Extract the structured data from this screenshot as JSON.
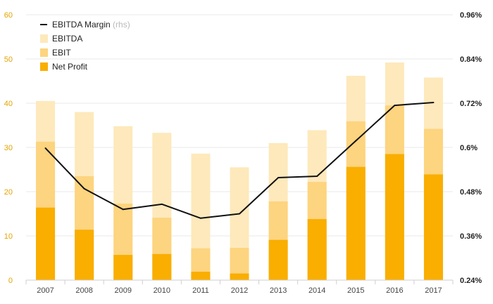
{
  "chart_data": {
    "type": "bar",
    "categories": [
      "2007",
      "2008",
      "2009",
      "2010",
      "2011",
      "2012",
      "2013",
      "2014",
      "2015",
      "2016",
      "2017"
    ],
    "series": [
      {
        "name": "EBITDA",
        "type": "bar",
        "values": [
          40.5,
          38.0,
          34.8,
          33.3,
          28.6,
          25.5,
          31.0,
          33.9,
          46.2,
          49.2,
          45.8
        ]
      },
      {
        "name": "EBIT",
        "type": "bar",
        "values": [
          31.3,
          23.5,
          17.3,
          14.1,
          7.2,
          7.3,
          17.8,
          22.2,
          35.9,
          39.5,
          34.2
        ]
      },
      {
        "name": "Net Profit",
        "type": "bar",
        "values": [
          16.4,
          11.4,
          5.7,
          5.9,
          1.9,
          1.5,
          9.1,
          13.8,
          25.6,
          28.5,
          23.9
        ]
      },
      {
        "name": "EBITDA Margin",
        "suffix": "(rhs)",
        "type": "line",
        "axis": "right",
        "values": [
          0.598,
          0.488,
          0.432,
          0.446,
          0.408,
          0.42,
          0.518,
          0.522,
          0.618,
          0.714,
          0.722
        ]
      }
    ],
    "ylim": [
      0,
      60
    ],
    "yticks": [
      0,
      10,
      20,
      30,
      40,
      50,
      60
    ],
    "y2lim": [
      0.24,
      0.96
    ],
    "y2ticks": [
      "0.24%",
      "0.36%",
      "0.48%",
      "0.6%",
      "0.72%",
      "0.84%",
      "0.96%"
    ],
    "grid": true,
    "legend": "top-left",
    "title": "",
    "xlabel": "",
    "ylabel": "",
    "colors": {
      "EBITDA": "#fde9bb",
      "EBIT": "#fdd47f",
      "Net Profit": "#f9ae00",
      "EBITDA Margin": "#111111",
      "left_axis_text": "#e3a400",
      "grid": "#e8e8e8"
    }
  }
}
